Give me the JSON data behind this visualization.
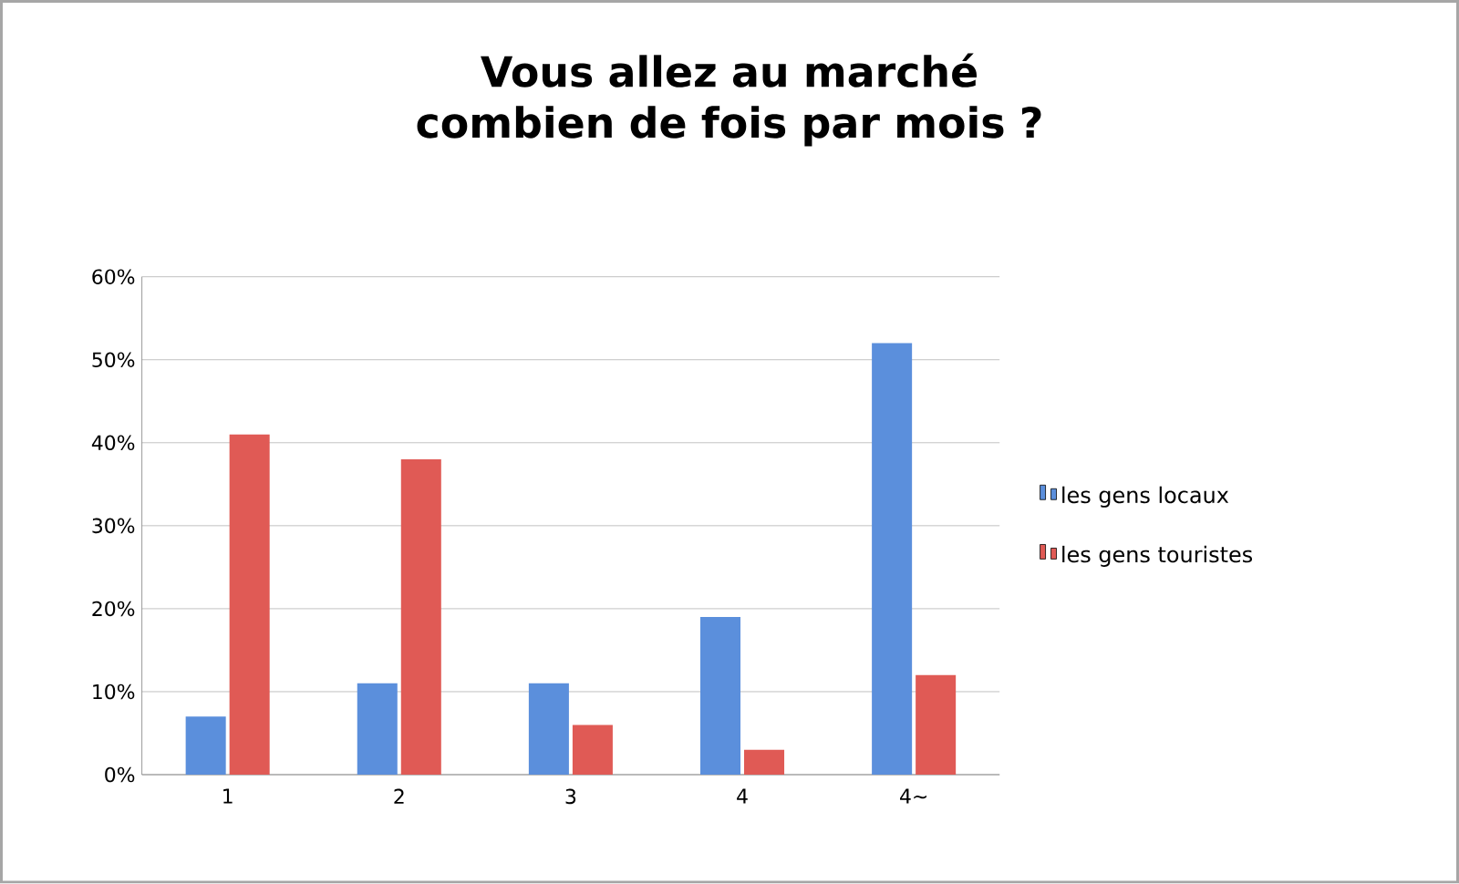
{
  "chart_data": {
    "type": "bar",
    "title": "Vous allez au marché combien de fois par mois ?",
    "categories": [
      "1",
      "2",
      "3",
      "4",
      "4∼"
    ],
    "series": [
      {
        "name": "les gens locaux",
        "color": "#5b8fdc",
        "values": [
          7,
          11,
          11,
          19,
          52
        ]
      },
      {
        "name": "les gens touristes",
        "color": "#e05a55",
        "values": [
          41,
          38,
          6,
          3,
          12
        ]
      }
    ],
    "ylim": [
      0,
      60
    ],
    "yticks": [
      {
        "value": 0,
        "label": "0%"
      },
      {
        "value": 10,
        "label": "10%"
      },
      {
        "value": 20,
        "label": "20%"
      },
      {
        "value": 30,
        "label": "30%"
      },
      {
        "value": 40,
        "label": "40%"
      },
      {
        "value": 50,
        "label": "50%"
      },
      {
        "value": 60,
        "label": "60%"
      }
    ],
    "grid": "y",
    "legend": "right"
  }
}
